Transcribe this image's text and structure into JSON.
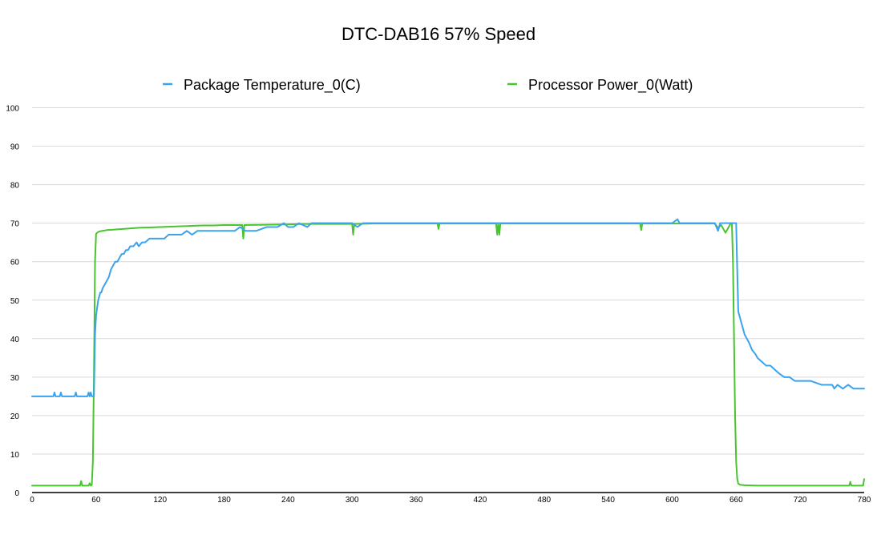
{
  "chart_data": {
    "type": "line",
    "title": "DTC-DAB16 57% Speed",
    "xlabel": "",
    "ylabel": "",
    "xlim": [
      0,
      780
    ],
    "ylim": [
      0,
      100
    ],
    "x_ticks": [
      0,
      60,
      120,
      180,
      240,
      300,
      360,
      420,
      480,
      540,
      600,
      660,
      720,
      780
    ],
    "y_ticks": [
      0,
      10,
      20,
      30,
      40,
      50,
      60,
      70,
      80,
      90,
      100
    ],
    "grid": true,
    "legend_position": "top",
    "series": [
      {
        "name": "Package Temperature_0(C)",
        "color": "#3ba3ee",
        "x": [
          0,
          20,
          21,
          22,
          26,
          27,
          28,
          40,
          41,
          42,
          52,
          53,
          54,
          55,
          56,
          57,
          58,
          59,
          60,
          61,
          62,
          63,
          64,
          65,
          66,
          68,
          70,
          72,
          74,
          76,
          78,
          80,
          82,
          84,
          86,
          88,
          90,
          92,
          95,
          98,
          100,
          103,
          106,
          110,
          113,
          116,
          120,
          124,
          128,
          132,
          136,
          140,
          145,
          150,
          155,
          160,
          165,
          170,
          180,
          190,
          195,
          200,
          210,
          220,
          230,
          236,
          240,
          245,
          250,
          258,
          262,
          270,
          280,
          290,
          300,
          305,
          310,
          320,
          330,
          340,
          350,
          360,
          380,
          400,
          420,
          440,
          460,
          480,
          500,
          520,
          540,
          560,
          580,
          600,
          605,
          607,
          610,
          620,
          640,
          643,
          645,
          648,
          660,
          661,
          662,
          663,
          664,
          666,
          668,
          670,
          672,
          675,
          678,
          680,
          684,
          688,
          692,
          696,
          700,
          705,
          710,
          715,
          720,
          725,
          730,
          740,
          750,
          752,
          755,
          760,
          765,
          770,
          775,
          780
        ],
        "values": [
          25,
          25,
          26,
          25,
          25,
          26,
          25,
          25,
          26,
          25,
          25,
          26,
          25,
          26,
          25,
          25,
          25,
          41,
          46,
          48,
          50,
          51,
          52,
          52,
          53,
          54,
          55,
          56,
          58,
          59,
          60,
          60,
          61,
          62,
          62,
          63,
          63,
          64,
          64,
          65,
          64,
          65,
          65,
          66,
          66,
          66,
          66,
          66,
          67,
          67,
          67,
          67,
          68,
          67,
          68,
          68,
          68,
          68,
          68,
          68,
          69,
          68,
          68,
          69,
          69,
          70,
          69,
          69,
          70,
          69,
          70,
          70,
          70,
          70,
          70,
          69,
          70,
          70,
          70,
          70,
          70,
          70,
          70,
          70,
          70,
          70,
          70,
          70,
          70,
          70,
          70,
          70,
          70,
          70,
          71,
          70,
          70,
          70,
          70,
          68,
          70,
          70,
          70,
          58,
          47,
          46,
          45,
          43,
          41,
          40,
          39,
          37,
          36,
          35,
          34,
          33,
          33,
          32,
          31,
          30,
          30,
          29,
          29,
          29,
          29,
          28,
          28,
          27,
          28,
          27,
          28,
          27,
          27,
          27
        ]
      },
      {
        "name": "Processor Power_0(Watt)",
        "color": "#48c52e",
        "x": [
          0,
          45,
          46,
          47,
          53,
          54,
          55,
          56,
          57,
          58,
          59,
          60,
          61,
          62,
          64,
          66,
          70,
          75,
          80,
          90,
          100,
          110,
          120,
          130,
          140,
          150,
          160,
          170,
          180,
          190,
          197,
          198,
          199,
          220,
          240,
          260,
          280,
          298,
          300,
          301,
          302,
          320,
          340,
          360,
          380,
          381,
          382,
          400,
          420,
          435,
          436,
          437,
          438,
          439,
          440,
          460,
          480,
          500,
          520,
          540,
          570,
          571,
          572,
          600,
          620,
          640,
          643,
          646,
          650,
          655,
          656,
          657,
          658,
          659,
          660,
          661,
          662,
          664,
          668,
          680,
          700,
          720,
          760,
          766,
          767,
          768,
          778,
          779,
          780
        ],
        "values": [
          1.8,
          1.8,
          3,
          1.8,
          1.8,
          2.4,
          1.8,
          2,
          8,
          30,
          60,
          67.2,
          67.5,
          67.7,
          67.9,
          68,
          68.2,
          68.3,
          68.4,
          68.6,
          68.8,
          68.9,
          69.0,
          69.1,
          69.2,
          69.3,
          69.4,
          69.4,
          69.5,
          69.5,
          69.5,
          66,
          69.5,
          69.6,
          69.7,
          69.8,
          69.8,
          69.8,
          69.8,
          67,
          69.8,
          69.9,
          69.9,
          69.9,
          69.9,
          68.5,
          69.9,
          69.9,
          69.9,
          69.9,
          67,
          69.9,
          67,
          69.9,
          69.9,
          69.9,
          69.9,
          69.9,
          69.9,
          69.9,
          69.9,
          68.2,
          69.9,
          69.9,
          69.9,
          69.9,
          68.8,
          69.5,
          67.5,
          70,
          70,
          60,
          40,
          20,
          8,
          3.5,
          2.3,
          2.0,
          1.9,
          1.8,
          1.8,
          1.8,
          1.8,
          1.8,
          2.8,
          1.8,
          1.8,
          1.8,
          3.5
        ]
      }
    ]
  }
}
